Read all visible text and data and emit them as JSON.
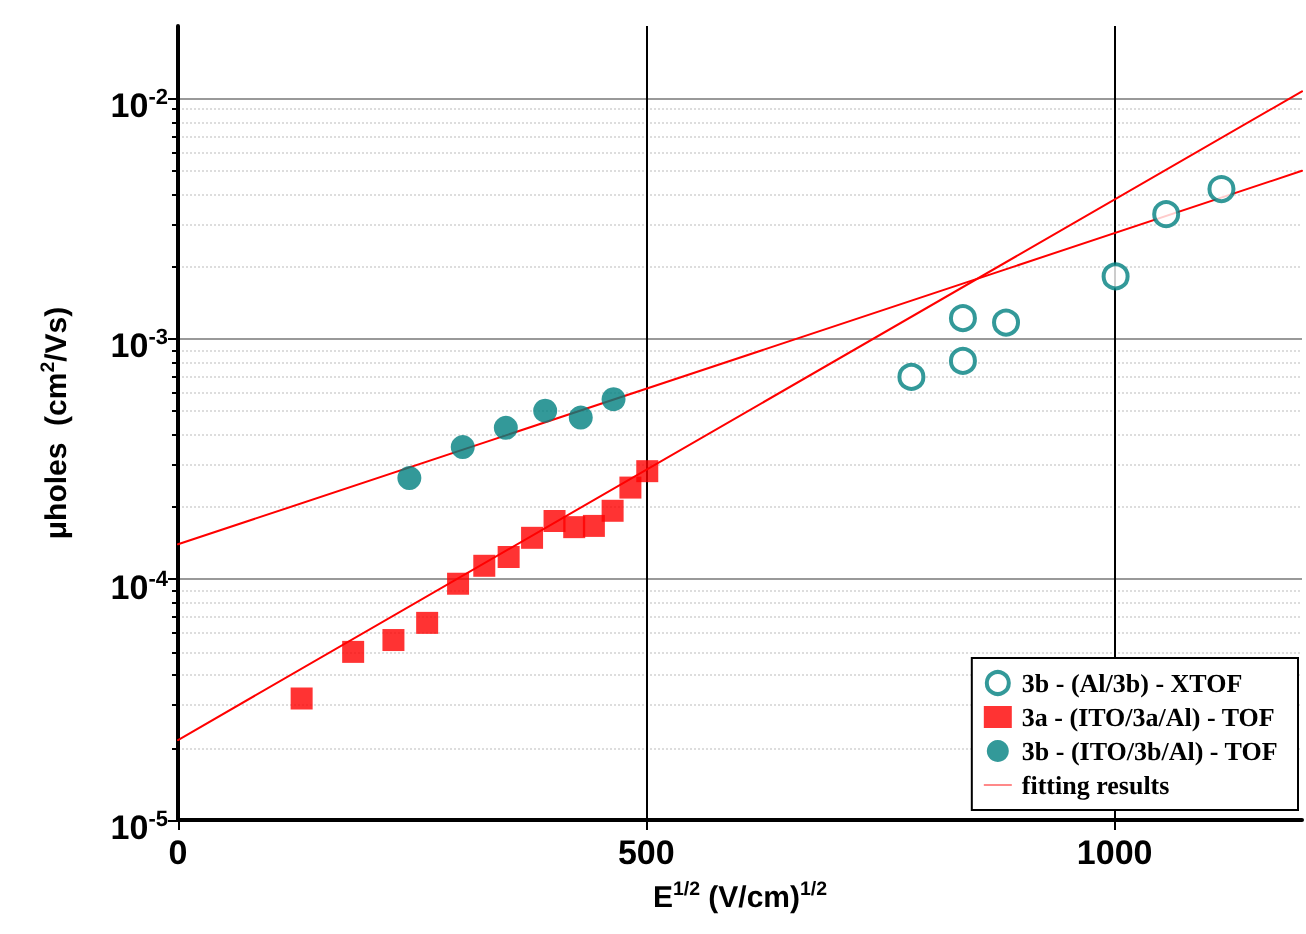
{
  "chart_data": {
    "type": "scatter",
    "xlabel": "E$^{1/2}$ (V/cm)$^{1/2}$",
    "ylabel": "μholes  (cm$^{2}$/Vs)",
    "xlim": [
      0,
      1200
    ],
    "xticks": [
      0,
      500,
      1000
    ],
    "ylim": [
      1e-05,
      0.02
    ],
    "yticks": [
      {
        "value": 1e-05,
        "label": "10$^{-5}$"
      },
      {
        "value": 0.0001,
        "label": "10$^{-4}$"
      },
      {
        "value": 0.001,
        "label": "10$^{-3}$"
      },
      {
        "value": 0.01,
        "label": "10$^{-2}$"
      }
    ],
    "log": "y",
    "grid": true,
    "legend": "bottom right",
    "series": [
      {
        "name": "3b - (Al/3b) - XTOF",
        "color": "#008080",
        "marker": "circle",
        "x": [
          783,
          838,
          838,
          884,
          1001,
          1055,
          1114
        ],
        "values": [
          0.000695,
          0.00081,
          0.00122,
          0.00117,
          0.00182,
          0.0033,
          0.0042
        ]
      },
      {
        "name": "3a - (ITO/3a/Al) - TOF",
        "color": "#ff0000",
        "marker": "square",
        "x": [
          132,
          187,
          230,
          266,
          299,
          327,
          353,
          378,
          402,
          423,
          444,
          464,
          483,
          501
        ],
        "values": [
          3.2e-05,
          5e-05,
          5.6e-05,
          6.6e-05,
          9.6e-05,
          0.000114,
          0.000124,
          0.000149,
          0.000175,
          0.000165,
          0.000167,
          0.000193,
          0.000241,
          0.000282
        ]
      },
      {
        "name": "3b - (ITO/3b/Al) - TOF",
        "color": "#008080",
        "marker": "circle",
        "x": [
          247,
          304,
          350,
          392,
          430,
          465
        ],
        "values": [
          0.000264,
          0.000355,
          0.000427,
          0.000503,
          0.000471,
          0.000562
        ]
      },
      {
        "name": "fitting results",
        "type": "line",
        "color": "#ff0000",
        "marker": "none",
        "x": [
          0,
          1200
        ],
        "values": [
          0.00014,
          0.005
        ]
      },
      {
        "type": "line",
        "color": "#ff0000",
        "marker": "none",
        "x": [
          0,
          1200
        ],
        "values": [
          2.15e-05,
          0.0107
        ]
      }
    ]
  }
}
